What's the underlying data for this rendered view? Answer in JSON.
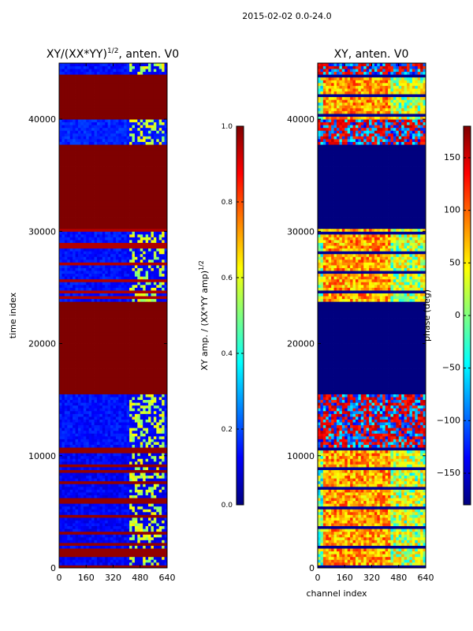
{
  "figure": {
    "suptitle": "2015-02-02 0.0-24.0"
  },
  "colors": {
    "jet": [
      "#00007f",
      "#0000ff",
      "#007fff",
      "#00ffff",
      "#7fff7f",
      "#ffff00",
      "#ff7f00",
      "#ff0000",
      "#7f0000"
    ],
    "axes": "#000000",
    "background": "#ffffff"
  },
  "chart_data": [
    {
      "type": "heatmap",
      "id": "ratio",
      "title_main": "XY/(XX*YY)",
      "title_exp": "1/2",
      "title_tail": ", anten. V0",
      "ylabel": "time index",
      "xlabel": "",
      "xlim": [
        0,
        640
      ],
      "ylim": [
        0,
        45000
      ],
      "xticks": [
        0,
        160,
        320,
        480,
        640
      ],
      "yticks": [
        0,
        10000,
        20000,
        30000,
        40000
      ],
      "ytick_labels": [
        "0",
        "10000",
        "20000",
        "30000",
        "40000"
      ],
      "background_value": 0.08,
      "bands": [
        {
          "y": [
            0,
            10800
          ],
          "kind": "striped",
          "base": 0.08,
          "stripe": 0.98
        },
        {
          "y": [
            10800,
            15600
          ],
          "kind": "low",
          "base": 0.1
        },
        {
          "y": [
            15600,
            23700
          ],
          "kind": "flat",
          "value": 1.0
        },
        {
          "y": [
            23700,
            30200
          ],
          "kind": "striped",
          "base": 0.1,
          "stripe": 0.95
        },
        {
          "y": [
            30200,
            37700
          ],
          "kind": "flat",
          "value": 1.0
        },
        {
          "y": [
            37700,
            39900
          ],
          "kind": "low",
          "base": 0.12
        },
        {
          "y": [
            39900,
            44100
          ],
          "kind": "flat",
          "value": 1.0
        },
        {
          "y": [
            44100,
            45000
          ],
          "kind": "low",
          "base": 0.1
        }
      ],
      "colorbar": {
        "label_main": "XY amp. / (XX*YY amp)",
        "label_exp": "1/2",
        "range": [
          0.0,
          1.0
        ],
        "ticks": [
          0.0,
          0.2,
          0.4,
          0.6,
          0.8,
          1.0
        ],
        "tick_labels": [
          "0.0",
          "0.2",
          "0.4",
          "0.6",
          "0.8",
          "1.0"
        ]
      }
    },
    {
      "type": "heatmap",
      "id": "phase",
      "title_main": "XY, anten. V0",
      "ylabel": "",
      "xlabel": "channel index",
      "xlim": [
        0,
        640
      ],
      "ylim": [
        0,
        45000
      ],
      "xticks": [
        0,
        160,
        320,
        480,
        640
      ],
      "yticks": [
        0,
        10000,
        20000,
        30000,
        40000
      ],
      "ytick_labels": [
        "0",
        "10000",
        "20000",
        "30000",
        "40000"
      ],
      "bands": [
        {
          "y": [
            0,
            10800
          ],
          "kind": "phase_hot"
        },
        {
          "y": [
            10800,
            15600
          ],
          "kind": "phase_mixed"
        },
        {
          "y": [
            15600,
            23700
          ],
          "kind": "flat",
          "value": -180
        },
        {
          "y": [
            23700,
            30200
          ],
          "kind": "phase_hot"
        },
        {
          "y": [
            30200,
            37700
          ],
          "kind": "flat",
          "value": -180
        },
        {
          "y": [
            37700,
            39900
          ],
          "kind": "phase_mixed"
        },
        {
          "y": [
            39900,
            44100
          ],
          "kind": "phase_hot"
        },
        {
          "y": [
            44100,
            45000
          ],
          "kind": "phase_mixed"
        }
      ],
      "colorbar": {
        "label_main": "phase (deg)",
        "range": [
          -180,
          180
        ],
        "ticks": [
          -150,
          -100,
          -50,
          0,
          50,
          100,
          150
        ],
        "tick_labels": [
          "−150",
          "−100",
          "−50",
          "0",
          "50",
          "100",
          "150"
        ]
      }
    }
  ]
}
